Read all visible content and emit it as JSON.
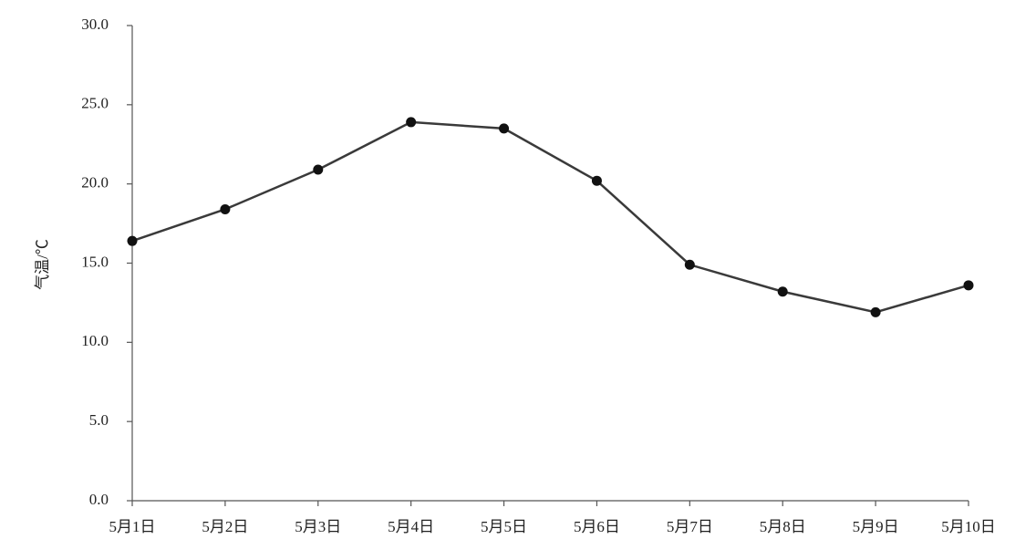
{
  "chart_data": {
    "type": "line",
    "y_label": "气温/℃",
    "categories": [
      "5月1日",
      "5月2日",
      "5月3日",
      "5月4日",
      "5月5日",
      "5月6日",
      "5月7日",
      "5月8日",
      "5月9日",
      "5月10日"
    ],
    "series": [
      {
        "color": "#3a3a3a",
        "values": [
          16.4,
          18.4,
          20.9,
          23.9,
          23.5,
          20.2,
          14.9,
          13.2,
          11.9,
          13.6
        ]
      }
    ],
    "ylim": [
      0,
      30
    ],
    "yticks": [
      {
        "value": 0,
        "label": "0.0"
      },
      {
        "value": 5,
        "label": "5.0"
      },
      {
        "value": 10,
        "label": "10.0"
      },
      {
        "value": 15,
        "label": "15.0"
      },
      {
        "value": 20,
        "label": "20.0"
      },
      {
        "value": 25,
        "label": "25.0"
      },
      {
        "value": 30,
        "label": "30.0"
      }
    ],
    "grid": false
  }
}
